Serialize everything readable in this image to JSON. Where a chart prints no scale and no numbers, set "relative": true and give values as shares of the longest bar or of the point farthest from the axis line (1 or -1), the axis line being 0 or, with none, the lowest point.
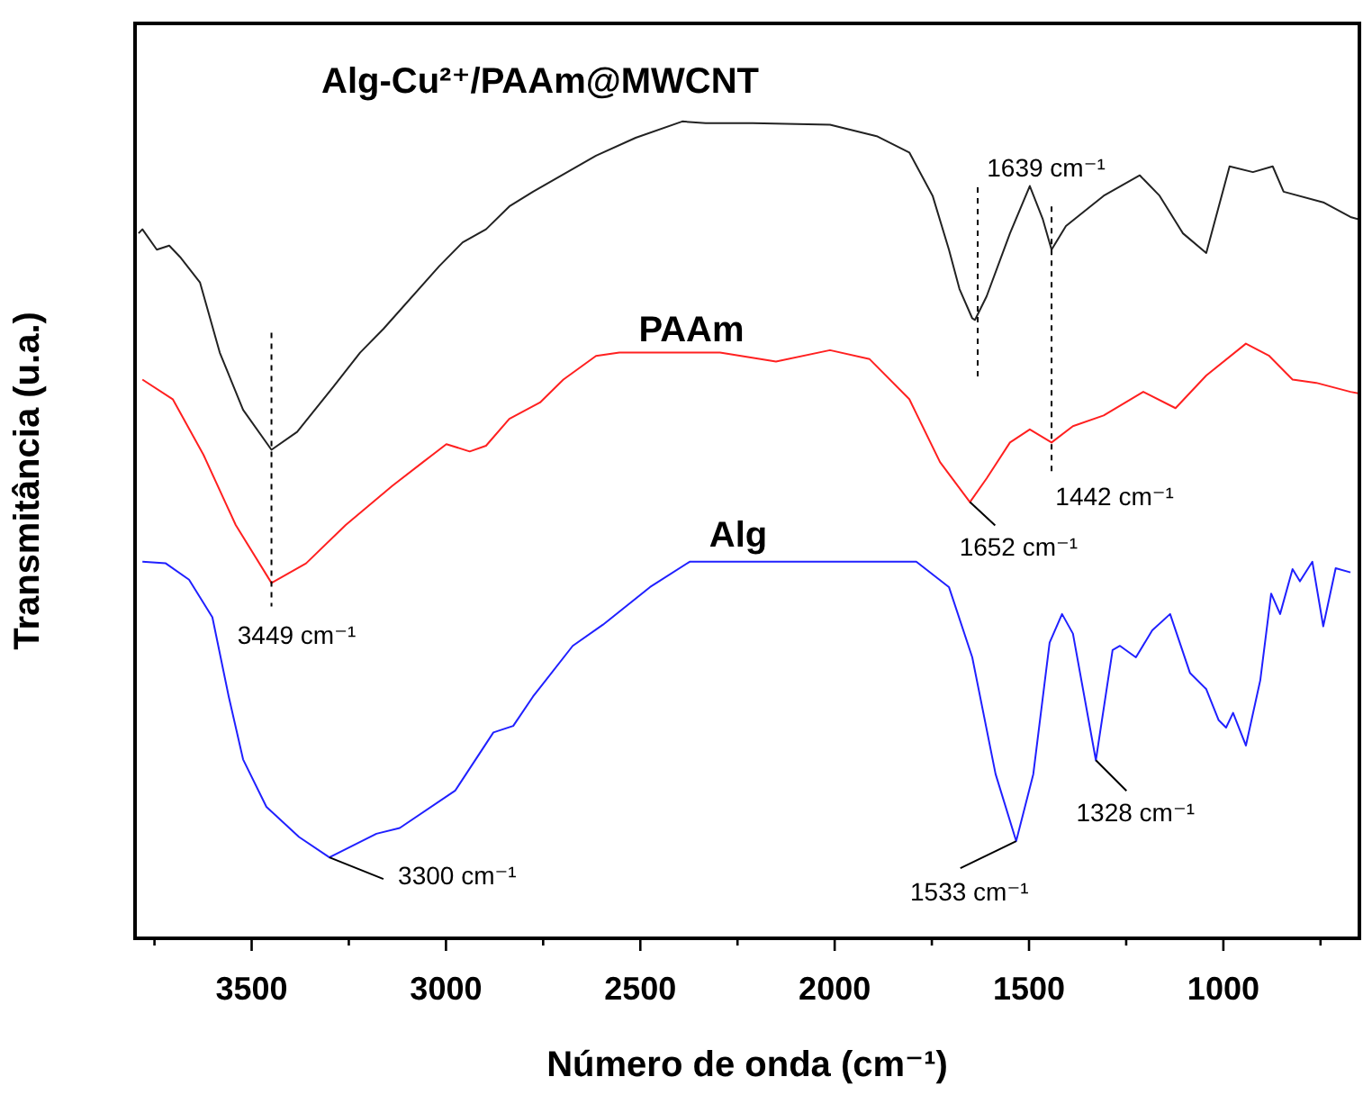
{
  "chart_data": {
    "type": "line",
    "relative": true,
    "xlabel": "Número de onda (cm⁻¹)",
    "ylabel": "Transmitância (u.a.)",
    "xlim": [
      3800,
      650
    ],
    "xticks": [
      {
        "value": 3750,
        "label": null
      },
      3500,
      {
        "value": 3250,
        "label": null
      },
      3000,
      {
        "value": 2750,
        "label": null
      },
      2500,
      {
        "value": 2250,
        "label": null
      },
      2000,
      {
        "value": 1750,
        "label": null
      },
      1500,
      {
        "value": 1250,
        "label": null
      },
      1000,
      {
        "value": 750,
        "label": null
      }
    ],
    "grid": false,
    "legend": false,
    "series": [
      {
        "name": "Alg-Cu²⁺/PAAm@MWCNT",
        "color": "#222222",
        "x": [
          3791,
          3781,
          3744,
          3712,
          3684,
          3633,
          3582,
          3522,
          3449,
          3383,
          3290,
          3221,
          3161,
          3017,
          2957,
          2897,
          2837,
          2776,
          2614,
          2512,
          2392,
          2332,
          2211,
          2012,
          1892,
          1808,
          1748,
          1706,
          1679,
          1646,
          1639,
          1609,
          1549,
          1498,
          1465,
          1442,
          1405,
          1308,
          1215,
          1164,
          1104,
          1044,
          984,
          924,
          873,
          845,
          743,
          673,
          650
        ],
        "values": [
          0.863,
          0.868,
          0.843,
          0.848,
          0.834,
          0.803,
          0.717,
          0.647,
          0.598,
          0.62,
          0.675,
          0.717,
          0.746,
          0.823,
          0.852,
          0.868,
          0.896,
          0.914,
          0.958,
          0.98,
          1,
          0.998,
          0.998,
          0.996,
          0.982,
          0.962,
          0.909,
          0.843,
          0.795,
          0.759,
          0.757,
          0.786,
          0.863,
          0.921,
          0.881,
          0.843,
          0.872,
          0.909,
          0.934,
          0.909,
          0.863,
          0.839,
          0.945,
          0.938,
          0.945,
          0.914,
          0.901,
          0.883,
          0.88
        ]
      },
      {
        "name": "PAAm",
        "color": "#ff2020",
        "x": [
          3781,
          3703,
          3624,
          3541,
          3449,
          3360,
          3258,
          3138,
          3059,
          2999,
          2939,
          2897,
          2837,
          2758,
          2698,
          2614,
          2554,
          2295,
          2151,
          2012,
          1910,
          1808,
          1729,
          1652,
          1609,
          1549,
          1498,
          1442,
          1387,
          1308,
          1206,
          1123,
          1044,
          942,
          882,
          822,
          761,
          673,
          650
        ],
        "values": [
          0.684,
          0.66,
          0.592,
          0.506,
          0.435,
          0.459,
          0.506,
          0.554,
          0.583,
          0.605,
          0.596,
          0.603,
          0.636,
          0.656,
          0.684,
          0.713,
          0.717,
          0.717,
          0.706,
          0.72,
          0.709,
          0.66,
          0.583,
          0.534,
          0.563,
          0.607,
          0.623,
          0.607,
          0.627,
          0.64,
          0.669,
          0.649,
          0.689,
          0.728,
          0.713,
          0.684,
          0.68,
          0.669,
          0.667
        ]
      },
      {
        "name": "Alg",
        "color": "#2020ff",
        "x": [
          3781,
          3721,
          3661,
          3601,
          3559,
          3522,
          3462,
          3378,
          3300,
          3179,
          3119,
          2976,
          2878,
          2827,
          2776,
          2674,
          2596,
          2475,
          2373,
          1790,
          1706,
          1646,
          1586,
          1533,
          1489,
          1447,
          1415,
          1387,
          1328,
          1285,
          1266,
          1225,
          1183,
          1137,
          1086,
          1044,
          1012,
          993,
          975,
          942,
          905,
          877,
          854,
          822,
          803,
          771,
          743,
          711,
          673
        ],
        "values": [
          0.461,
          0.459,
          0.439,
          0.393,
          0.296,
          0.219,
          0.161,
          0.124,
          0.099,
          0.128,
          0.135,
          0.181,
          0.252,
          0.26,
          0.296,
          0.358,
          0.384,
          0.43,
          0.461,
          0.461,
          0.43,
          0.344,
          0.201,
          0.119,
          0.201,
          0.362,
          0.397,
          0.373,
          0.218,
          0.353,
          0.358,
          0.344,
          0.377,
          0.397,
          0.325,
          0.305,
          0.267,
          0.258,
          0.276,
          0.236,
          0.316,
          0.422,
          0.397,
          0.452,
          0.437,
          0.461,
          0.382,
          0.453,
          0.448
        ]
      }
    ],
    "annotations": [
      "1639 cm⁻¹",
      {
        "text": "3449 cm⁻¹",
        "x": 3449,
        "y": 0.435
      },
      {
        "text": "1652 cm⁻¹",
        "x": 1652,
        "y": 0.534
      },
      {
        "text": "1442 cm⁻¹",
        "x": 1442,
        "y": 0.607
      },
      {
        "text": "3300 cm⁻¹",
        "x": 3300,
        "y": 0.099
      },
      {
        "text": "1533 cm⁻¹",
        "x": 1533,
        "y": 0.119
      },
      {
        "text": "1328 cm⁻¹",
        "x": 1328,
        "y": 0.218
      }
    ]
  }
}
